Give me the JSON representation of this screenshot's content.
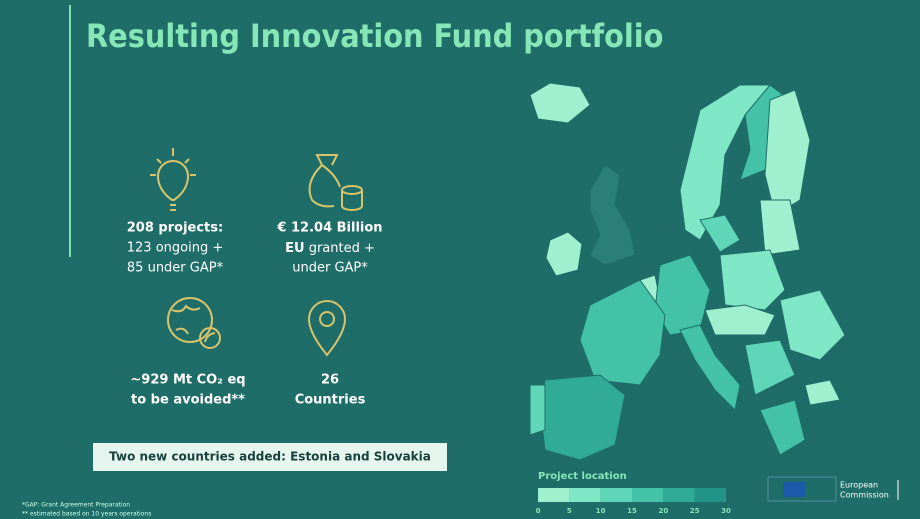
{
  "header": {
    "title": "Resulting Innovation Fund portfolio"
  },
  "stats": [
    {
      "headline": "208 projects:",
      "lines": [
        "123 ongoing +",
        "85 under GAP*"
      ]
    },
    {
      "headline": "€ 12.04 Billion",
      "lines_bold": "EU",
      "lines": [
        " granted +",
        "under GAP*"
      ]
    },
    {
      "headline": "~929 Mt CO₂ eq",
      "lines": [
        "to be avoided**"
      ]
    },
    {
      "headline": "26",
      "lines": [
        "Countries"
      ]
    }
  ],
  "banner": "Two new countries added: Estonia and Slovakia",
  "footnotes": [
    "*GAP: Grant Agreement Preparation",
    "** estimated based on 10 years operations"
  ],
  "legend": {
    "title": "Project location",
    "ticks": [
      0,
      5,
      10,
      15,
      20,
      25,
      30
    ],
    "colors": [
      "#9ff0cf",
      "#7fe6c6",
      "#5fd6b8",
      "#43c2a8",
      "#2fab98",
      "#239488"
    ]
  },
  "logo": {
    "lines": [
      "European",
      "Commission"
    ]
  }
}
